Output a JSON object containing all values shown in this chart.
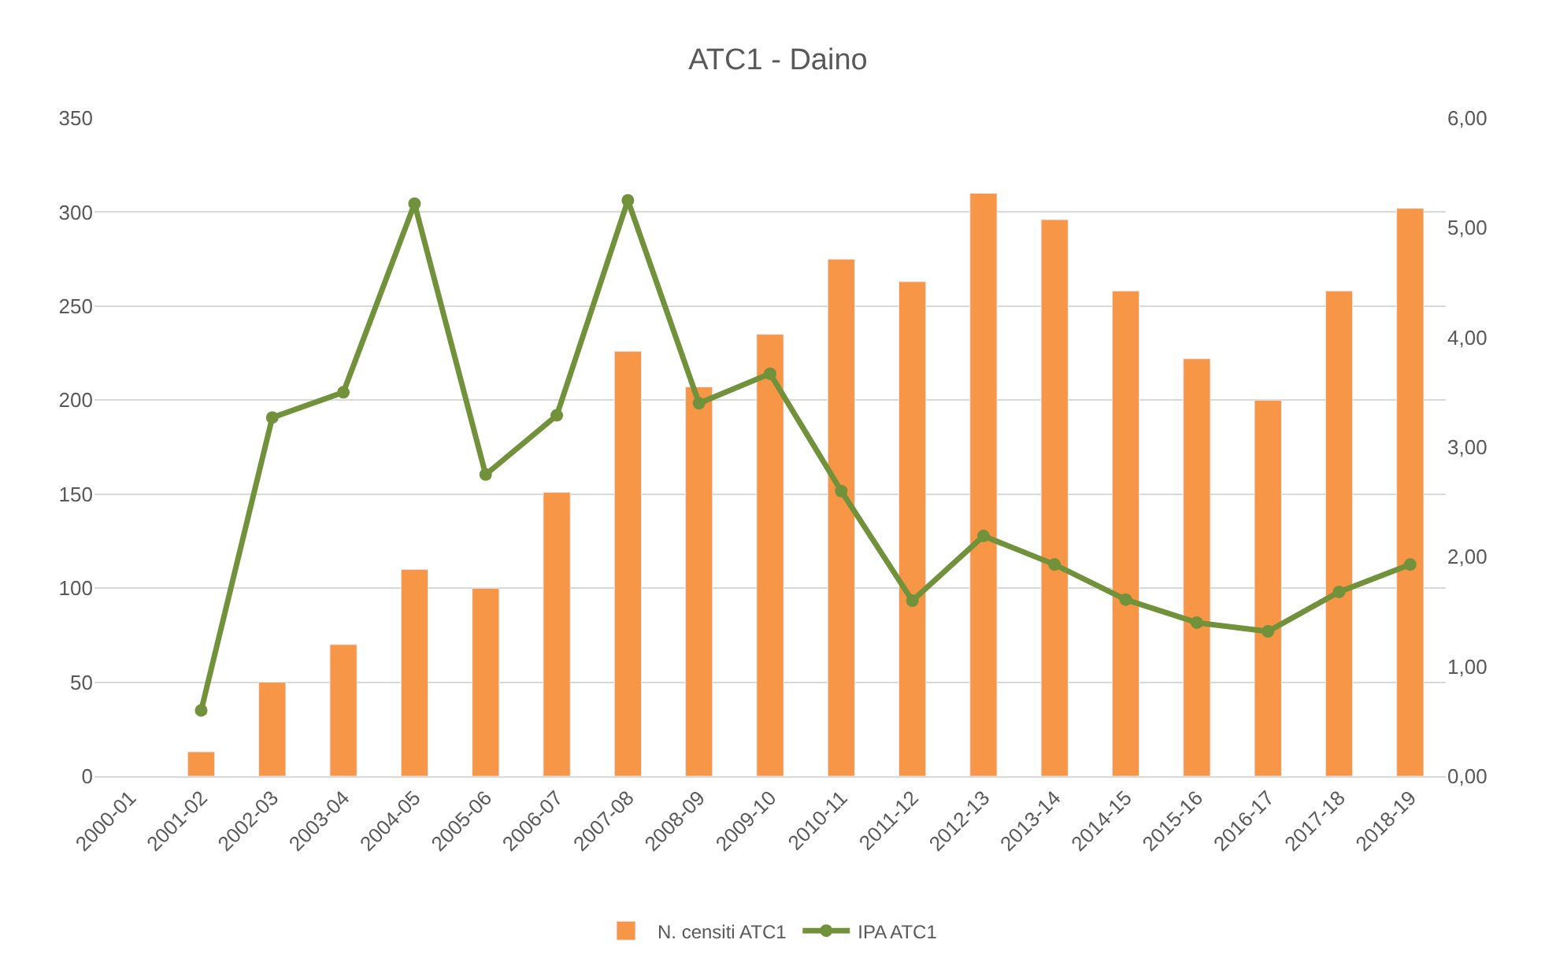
{
  "chart_data": {
    "type": "bar",
    "title": "ATC1 - Daino",
    "categories": [
      "2000-01",
      "2001-02",
      "2002-03",
      "2003-04",
      "2004-05",
      "2005-06",
      "2006-07",
      "2007-08",
      "2008-09",
      "2009-10",
      "2010-11",
      "2011-12",
      "2012-13",
      "2013-14",
      "2014-15",
      "2015-16",
      "2016-17",
      "2017-18",
      "2018-19"
    ],
    "series": [
      {
        "name": "N. censiti ATC1",
        "color": "#f79646",
        "values": [
          null,
          13,
          50,
          70,
          110,
          100,
          151,
          226,
          207,
          235,
          275,
          263,
          310,
          296,
          258,
          222,
          200,
          258,
          302
        ]
      },
      {
        "name": "IPA ATC1",
        "type": "line",
        "axis": "y2",
        "color": "#71923a",
        "marker": "circle",
        "values": [
          null,
          0.6,
          3.27,
          3.5,
          5.22,
          2.75,
          3.29,
          5.25,
          3.4,
          3.67,
          2.6,
          1.6,
          2.19,
          1.93,
          1.61,
          1.4,
          1.32,
          1.68,
          1.93
        ]
      }
    ],
    "ylim": [
      0,
      350
    ],
    "yticks": [
      0,
      50,
      100,
      150,
      200,
      250,
      300,
      350
    ],
    "y2lim": [
      0,
      6
    ],
    "y2ticks": [
      {
        "value": 0,
        "label": "0,00"
      },
      {
        "value": 1,
        "label": "1,00"
      },
      {
        "value": 2,
        "label": "2,00"
      },
      {
        "value": 3,
        "label": "3,00"
      },
      {
        "value": 4,
        "label": "4,00"
      },
      {
        "value": 5,
        "label": "5,00"
      },
      {
        "value": 6,
        "label": "6,00"
      }
    ],
    "grid": "y",
    "legend": "bottom"
  }
}
